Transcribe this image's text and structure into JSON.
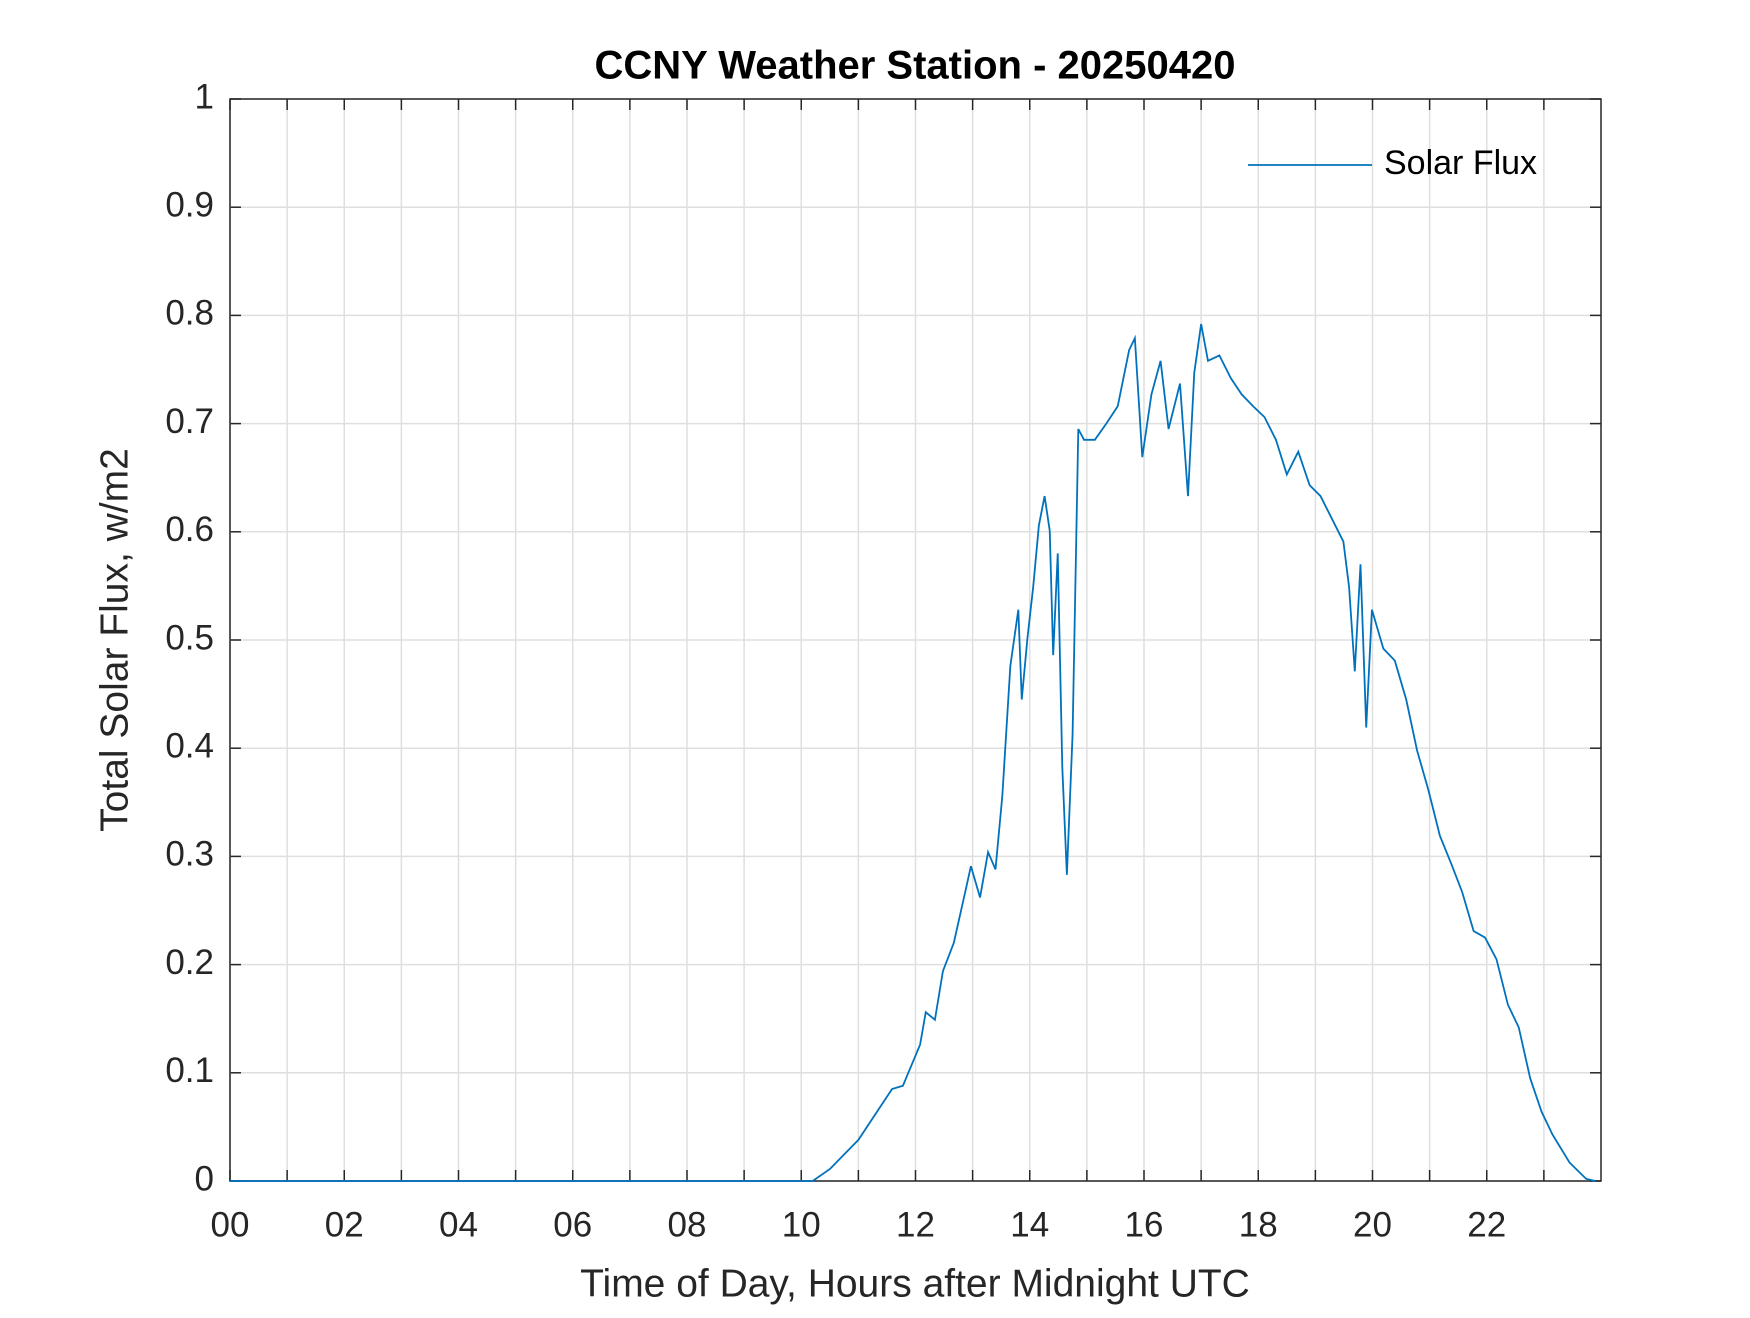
{
  "chart_data": {
    "type": "line",
    "title": "CCNY Weather Station - 20250420",
    "xlabel": "Time of Day, Hours after Midnight UTC",
    "ylabel": "Total Solar Flux, w/m2",
    "x": [
      0,
      10.2,
      10.5,
      11.0,
      11.59,
      11.78,
      12.08,
      12.18,
      12.34,
      12.48,
      12.67,
      12.87,
      12.97,
      13.13,
      13.27,
      13.4,
      13.52,
      13.66,
      13.8,
      13.86,
      13.96,
      14.06,
      14.16,
      14.26,
      14.35,
      14.41,
      14.49,
      14.57,
      14.65,
      14.75,
      14.85,
      14.95,
      15.14,
      15.34,
      15.54,
      15.74,
      15.84,
      15.97,
      16.13,
      16.29,
      16.43,
      16.63,
      16.77,
      16.88,
      17.0,
      17.12,
      17.32,
      17.52,
      17.71,
      17.91,
      18.11,
      18.31,
      18.5,
      18.7,
      18.9,
      19.09,
      19.29,
      19.49,
      19.59,
      19.69,
      19.79,
      19.89,
      19.99,
      20.19,
      20.39,
      20.59,
      20.78,
      20.98,
      21.18,
      21.38,
      21.57,
      21.77,
      21.97,
      22.17,
      22.37,
      22.56,
      22.76,
      22.96,
      23.15,
      23.45,
      23.74,
      23.9
    ],
    "series": [
      {
        "name": "Solar Flux",
        "color": "#0072bd",
        "values": [
          0,
          0,
          0.011,
          0.038,
          0.085,
          0.088,
          0.126,
          0.156,
          0.149,
          0.194,
          0.22,
          0.267,
          0.291,
          0.262,
          0.304,
          0.288,
          0.356,
          0.476,
          0.528,
          0.445,
          0.502,
          0.549,
          0.606,
          0.633,
          0.601,
          0.486,
          0.58,
          0.382,
          0.283,
          0.413,
          0.695,
          0.685,
          0.685,
          0.7,
          0.716,
          0.768,
          0.779,
          0.669,
          0.727,
          0.758,
          0.695,
          0.737,
          0.633,
          0.747,
          0.792,
          0.758,
          0.763,
          0.742,
          0.727,
          0.716,
          0.706,
          0.685,
          0.653,
          0.674,
          0.643,
          0.633,
          0.612,
          0.591,
          0.549,
          0.471,
          0.57,
          0.419,
          0.528,
          0.492,
          0.481,
          0.445,
          0.398,
          0.361,
          0.319,
          0.293,
          0.267,
          0.231,
          0.225,
          0.205,
          0.163,
          0.142,
          0.095,
          0.064,
          0.043,
          0.017,
          0.002,
          0
        ]
      }
    ],
    "xlim": [
      0,
      24
    ],
    "xticks": [
      {
        "value": 0,
        "label": "00"
      },
      {
        "value": 2,
        "label": "02"
      },
      {
        "value": 4,
        "label": "04"
      },
      {
        "value": 6,
        "label": "06"
      },
      {
        "value": 8,
        "label": "08"
      },
      {
        "value": 10,
        "label": "10"
      },
      {
        "value": 12,
        "label": "12"
      },
      {
        "value": 14,
        "label": "14"
      },
      {
        "value": 16,
        "label": "16"
      },
      {
        "value": 18,
        "label": "18"
      },
      {
        "value": 20,
        "label": "20"
      },
      {
        "value": 22,
        "label": "22"
      }
    ],
    "xminorticks": [
      1,
      3,
      5,
      7,
      9,
      11,
      13,
      15,
      17,
      19,
      21,
      23
    ],
    "ylim": [
      0,
      1
    ],
    "yticks": [
      0,
      0.1,
      0.2,
      0.3,
      0.4,
      0.5,
      0.6,
      0.7,
      0.8,
      0.9,
      1
    ],
    "grid": true,
    "legend": "upper-right"
  }
}
